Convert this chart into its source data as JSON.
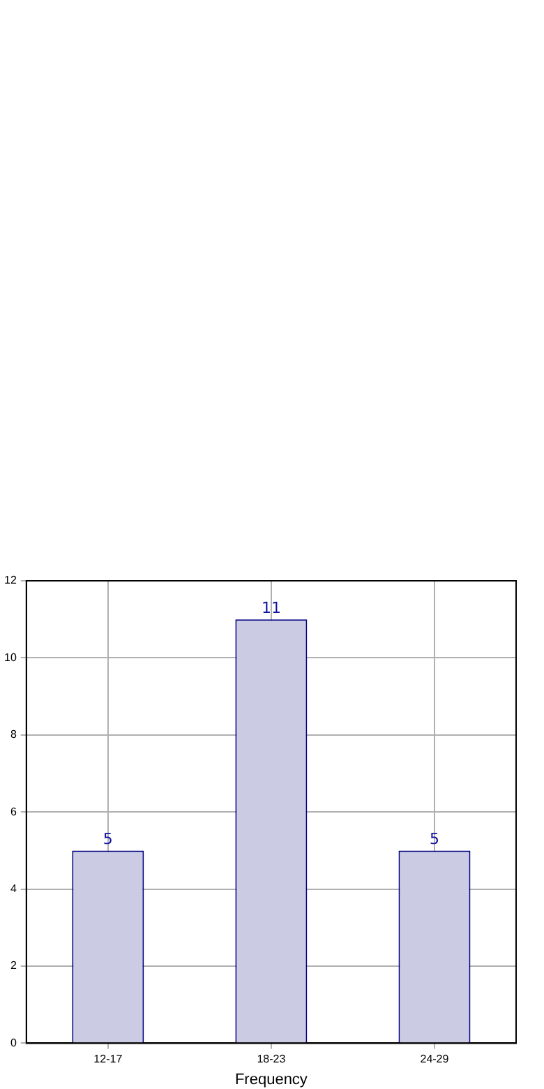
{
  "chart_data": {
    "type": "bar",
    "xlabel": "Frequency",
    "categories": [
      "12-17",
      "18-23",
      "24-29"
    ],
    "values": [
      5,
      11,
      5
    ],
    "color": "#cbcce4",
    "ylim": [
      0,
      12
    ],
    "yticks": [
      0,
      2,
      4,
      6,
      8,
      10,
      12
    ],
    "grid": true,
    "data_labels": true,
    "legend": false
  }
}
